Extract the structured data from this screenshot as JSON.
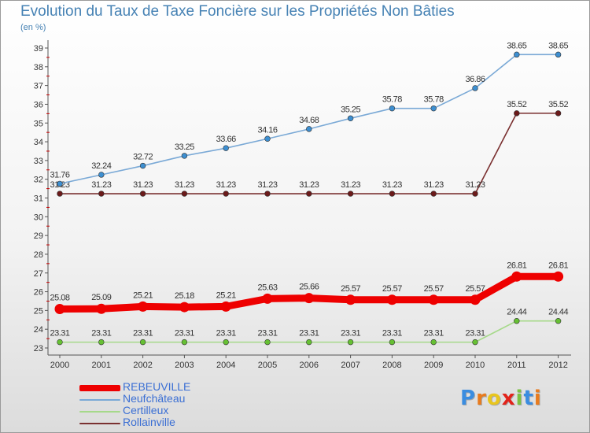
{
  "chart_data": {
    "type": "line",
    "title": "Evolution du Taux de Taxe Foncière sur les Propriétés Non Bâties",
    "unit_label": "(en %)",
    "x": [
      "2000",
      "2001",
      "2002",
      "2003",
      "2004",
      "2005",
      "2006",
      "2007",
      "2008",
      "2009",
      "2010",
      "2011",
      "2012"
    ],
    "ylim": [
      23,
      39
    ],
    "yticks": [
      23,
      24,
      25,
      26,
      27,
      28,
      29,
      30,
      31,
      32,
      33,
      34,
      35,
      36,
      37,
      38,
      39
    ],
    "grid": false,
    "legend_placement": "bottom-left",
    "series": [
      {
        "name": "REBEUVILLE",
        "color": "#ee0000",
        "values": [
          25.08,
          25.09,
          25.21,
          25.18,
          25.21,
          25.63,
          25.66,
          25.57,
          25.57,
          25.57,
          25.57,
          26.81,
          26.81
        ],
        "labels": [
          "25.08",
          "25.09",
          "25.21",
          "25.18",
          "25.21",
          "25.63",
          "25.66",
          "25.57",
          "25.57",
          "25.57",
          "25.57",
          "26.81",
          "26.81"
        ]
      },
      {
        "name": "Neufchâteau",
        "color": "#7aa9d6",
        "marker_color": "#3d8fd1",
        "values": [
          31.76,
          32.24,
          32.72,
          33.25,
          33.66,
          34.16,
          34.68,
          35.25,
          35.78,
          35.78,
          36.86,
          38.65,
          38.65
        ],
        "labels": [
          "31.76",
          "32.24",
          "32.72",
          "33.25",
          "33.66",
          "34.16",
          "34.68",
          "35.25",
          "35.78",
          "35.78",
          "36.86",
          "38.65",
          "38.65"
        ]
      },
      {
        "name": "Certilleux",
        "color": "#a6d98a",
        "marker_color": "#66c033",
        "values": [
          23.31,
          23.31,
          23.31,
          23.31,
          23.31,
          23.31,
          23.31,
          23.31,
          23.31,
          23.31,
          23.31,
          24.44,
          24.44
        ],
        "labels": [
          "23.31",
          "23.31",
          "23.31",
          "23.31",
          "23.31",
          "23.31",
          "23.31",
          "23.31",
          "23.31",
          "23.31",
          "23.31",
          "24.44",
          "24.44"
        ]
      },
      {
        "name": "Rollainville",
        "color": "#7a3030",
        "marker_color": "#6b1a1a",
        "values": [
          31.23,
          31.23,
          31.23,
          31.23,
          31.23,
          31.23,
          31.23,
          31.23,
          31.23,
          31.23,
          31.23,
          35.52,
          35.52
        ],
        "labels": [
          "31.23",
          "31.23",
          "31.23",
          "31.23",
          "31.23",
          "31.23",
          "31.23",
          "31.23",
          "31.23",
          "31.23",
          "31.23",
          "35.52",
          "35.52"
        ]
      }
    ]
  },
  "legend": [
    {
      "label": "REBEUVILLE",
      "color": "#ee0000"
    },
    {
      "label": "Neufchâteau",
      "color": "#7aa9d6"
    },
    {
      "label": "Certilleux",
      "color": "#a6d98a"
    },
    {
      "label": "Rollainville",
      "color": "#7a3030"
    }
  ],
  "logo": {
    "text": "Proxiti",
    "letter_colors": [
      "#3b8de0",
      "#e87b1e",
      "#e8c51e",
      "#e2231a",
      "#7cc242",
      "#3b8de0",
      "#e87b1e"
    ]
  }
}
